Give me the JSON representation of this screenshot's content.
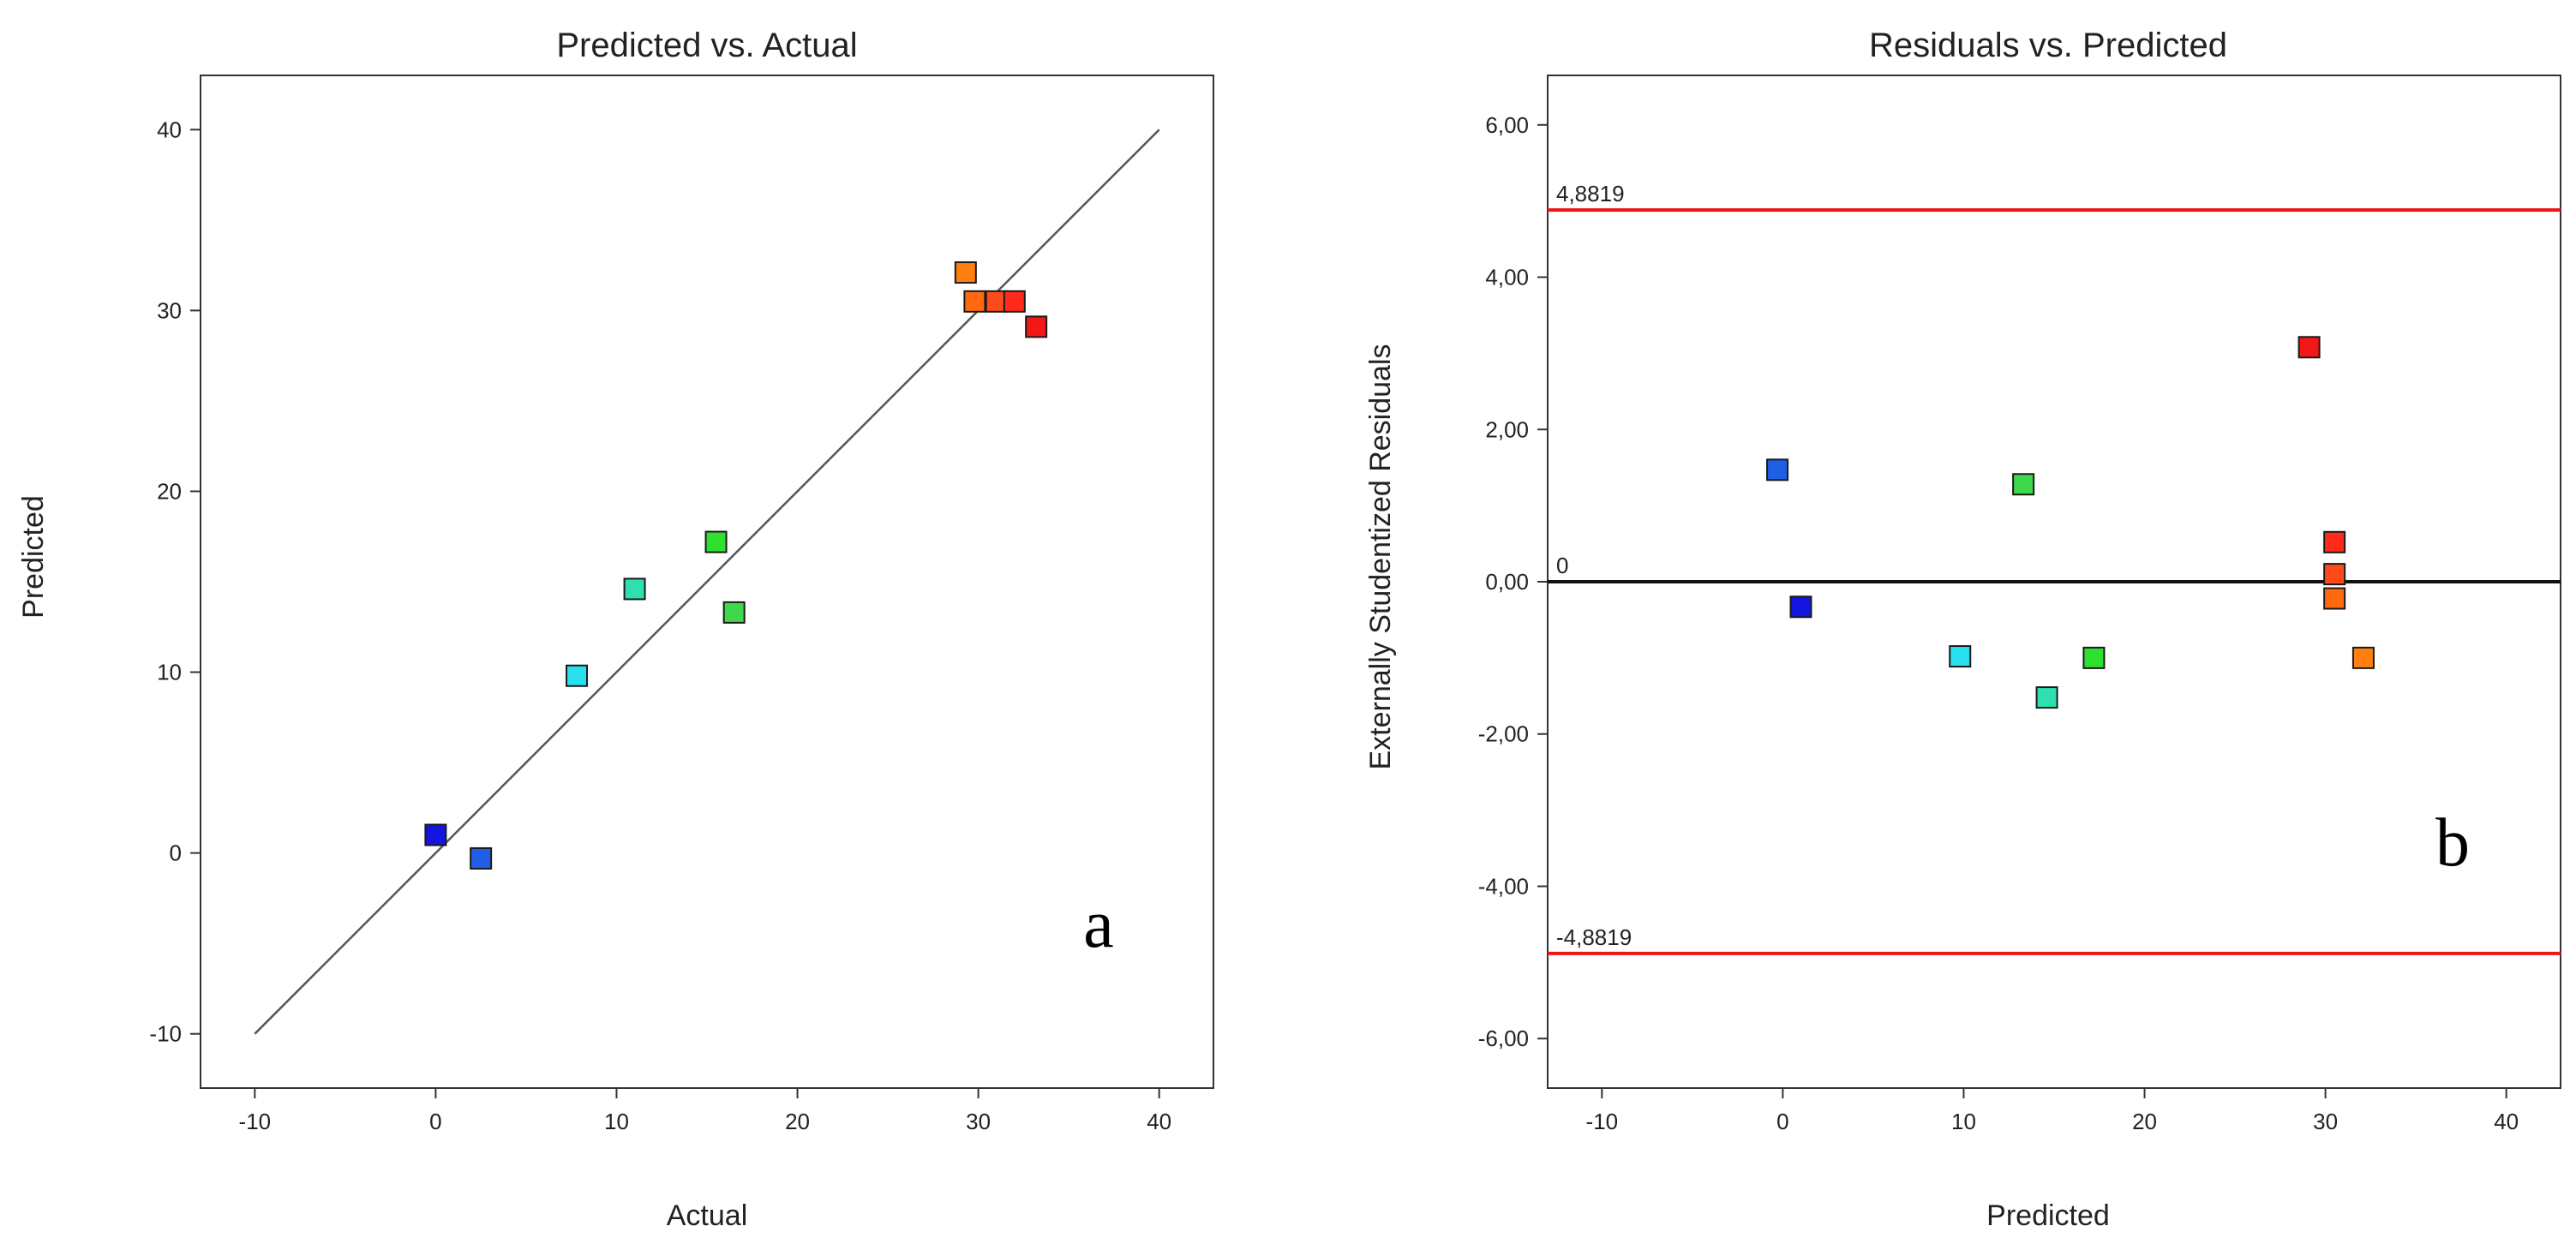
{
  "chart_data": [
    {
      "type": "scatter",
      "panel_label": "a",
      "title": "Predicted vs. Actual",
      "xlabel": "Actual",
      "ylabel": "Predicted",
      "xlim": [
        -13,
        43
      ],
      "ylim": [
        -13,
        43
      ],
      "xticks": [
        -10,
        0,
        10,
        20,
        30,
        40
      ],
      "xtick_labels": [
        "-10",
        "0",
        "10",
        "20",
        "30",
        "40"
      ],
      "yticks": [
        -10,
        0,
        10,
        20,
        30,
        40
      ],
      "ytick_labels": [
        "-10",
        "0",
        "10",
        "20",
        "30",
        "40"
      ],
      "reference_line": {
        "from": [
          -10,
          -10
        ],
        "to": [
          40,
          40
        ],
        "color": "#555555"
      },
      "points": [
        {
          "x": 0.0,
          "y": 1.0,
          "color": "#1515e0"
        },
        {
          "x": 2.5,
          "y": -0.3,
          "color": "#1f5fe6"
        },
        {
          "x": 7.8,
          "y": 9.8,
          "color": "#28e0f0"
        },
        {
          "x": 11.0,
          "y": 14.6,
          "color": "#2ee0b0"
        },
        {
          "x": 15.5,
          "y": 17.2,
          "color": "#2fe02f"
        },
        {
          "x": 16.5,
          "y": 13.3,
          "color": "#3ed84a"
        },
        {
          "x": 29.3,
          "y": 32.1,
          "color": "#ff7f0e"
        },
        {
          "x": 29.8,
          "y": 30.5,
          "color": "#ff6a10"
        },
        {
          "x": 31.0,
          "y": 30.5,
          "color": "#ff4a1a"
        },
        {
          "x": 32.0,
          "y": 30.5,
          "color": "#ff2a1a"
        },
        {
          "x": 33.2,
          "y": 29.1,
          "color": "#f21818"
        }
      ]
    },
    {
      "type": "scatter",
      "panel_label": "b",
      "title": "Residuals vs. Predicted",
      "xlabel": "Predicted",
      "ylabel": "Externally Studentized Residuals",
      "xlim": [
        -13,
        43
      ],
      "ylim": [
        -6.65,
        6.65
      ],
      "xticks": [
        -10,
        0,
        10,
        20,
        30,
        40
      ],
      "xtick_labels": [
        "-10",
        "0",
        "10",
        "20",
        "30",
        "40"
      ],
      "yticks": [
        -6,
        -4,
        -2,
        0,
        2,
        4,
        6
      ],
      "ytick_labels": [
        "-6,00",
        "-4,00",
        "-2,00",
        "0,00",
        "2,00",
        "4,00",
        "6,00"
      ],
      "limit_lines": [
        {
          "y": 4.8819,
          "label": "4,8819",
          "color": "#e81818"
        },
        {
          "y": 0,
          "label": "0",
          "color": "#111111"
        },
        {
          "y": -4.8819,
          "label": "-4,8819",
          "color": "#e81818"
        }
      ],
      "points": [
        {
          "x": -0.3,
          "y": 1.47,
          "color": "#1f5fe6"
        },
        {
          "x": 1.0,
          "y": -0.33,
          "color": "#1515e0"
        },
        {
          "x": 9.8,
          "y": -0.98,
          "color": "#28e0f0"
        },
        {
          "x": 13.3,
          "y": 1.28,
          "color": "#3ed84a"
        },
        {
          "x": 14.6,
          "y": -1.52,
          "color": "#2ee0b0"
        },
        {
          "x": 17.2,
          "y": -1.0,
          "color": "#2fe02f"
        },
        {
          "x": 29.1,
          "y": 3.08,
          "color": "#f21818"
        },
        {
          "x": 30.5,
          "y": 0.52,
          "color": "#ff2a1a"
        },
        {
          "x": 30.5,
          "y": 0.1,
          "color": "#ff4a1a"
        },
        {
          "x": 30.5,
          "y": -0.22,
          "color": "#ff6a10"
        },
        {
          "x": 32.1,
          "y": -1.0,
          "color": "#ff7f0e"
        }
      ]
    }
  ]
}
